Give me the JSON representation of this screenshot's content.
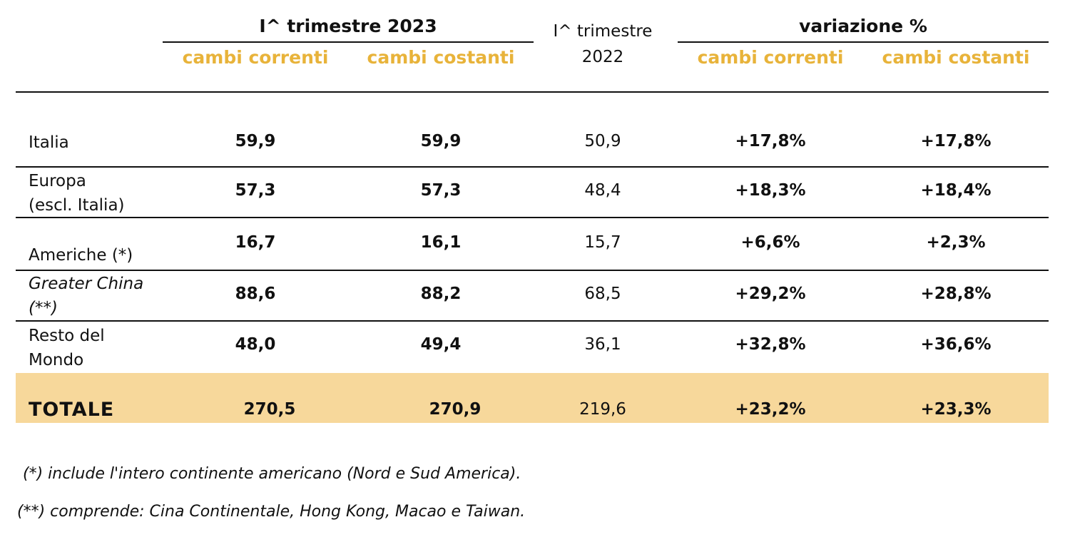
{
  "header": {
    "group_2023": "I^ trimestre 2023",
    "col_2022_line1": "I^ trimestre",
    "col_2022_line2": "2022",
    "group_change": "variazione %",
    "sub_current": "cambi correnti",
    "sub_constant": "cambi costanti",
    "sub_current_change": "cambi correnti",
    "sub_constant_change": "cambi costanti"
  },
  "rows": [
    {
      "label_lines": [
        "Italia"
      ],
      "italic": false,
      "q1_2023_current": "59,9",
      "q1_2023_constant": "59,9",
      "q1_2022": "50,9",
      "change_current": "+17,8%",
      "change_constant": "+17,8%"
    },
    {
      "label_lines": [
        "Europa",
        "(escl. Italia)"
      ],
      "italic": false,
      "q1_2023_current": "57,3",
      "q1_2023_constant": "57,3",
      "q1_2022": "48,4",
      "change_current": "+18,3%",
      "change_constant": "+18,4%"
    },
    {
      "label_lines": [
        "Americhe (*)"
      ],
      "italic": false,
      "q1_2023_current": "16,7",
      "q1_2023_constant": "16,1",
      "q1_2022": "15,7",
      "change_current": "+6,6%",
      "change_constant": "+2,3%"
    },
    {
      "label_lines": [
        "Greater China",
        "(**)"
      ],
      "italic": true,
      "q1_2023_current": "88,6",
      "q1_2023_constant": "88,2",
      "q1_2022": "68,5",
      "change_current": "+29,2%",
      "change_constant": "+28,8%"
    },
    {
      "label_lines": [
        "Resto del",
        "Mondo"
      ],
      "italic": false,
      "q1_2023_current": "48,0",
      "q1_2023_constant": "49,4",
      "q1_2022": "36,1",
      "change_current": "+32,8%",
      "change_constant": "+36,6%"
    }
  ],
  "total": {
    "label": "TOTALE",
    "q1_2023_current": "270,5",
    "q1_2023_constant": "270,9",
    "q1_2022": "219,6",
    "change_current": "+23,2%",
    "change_constant": "+23,3%"
  },
  "notes": {
    "note1": "(*) include l'intero continente americano (Nord e Sud America).",
    "note2": "(**) comprende: Cina Continentale, Hong Kong, Macao e Taiwan."
  },
  "colors": {
    "header_accent": "#e8b33a",
    "total_band": "#f7d89b",
    "rules": "#111111"
  }
}
